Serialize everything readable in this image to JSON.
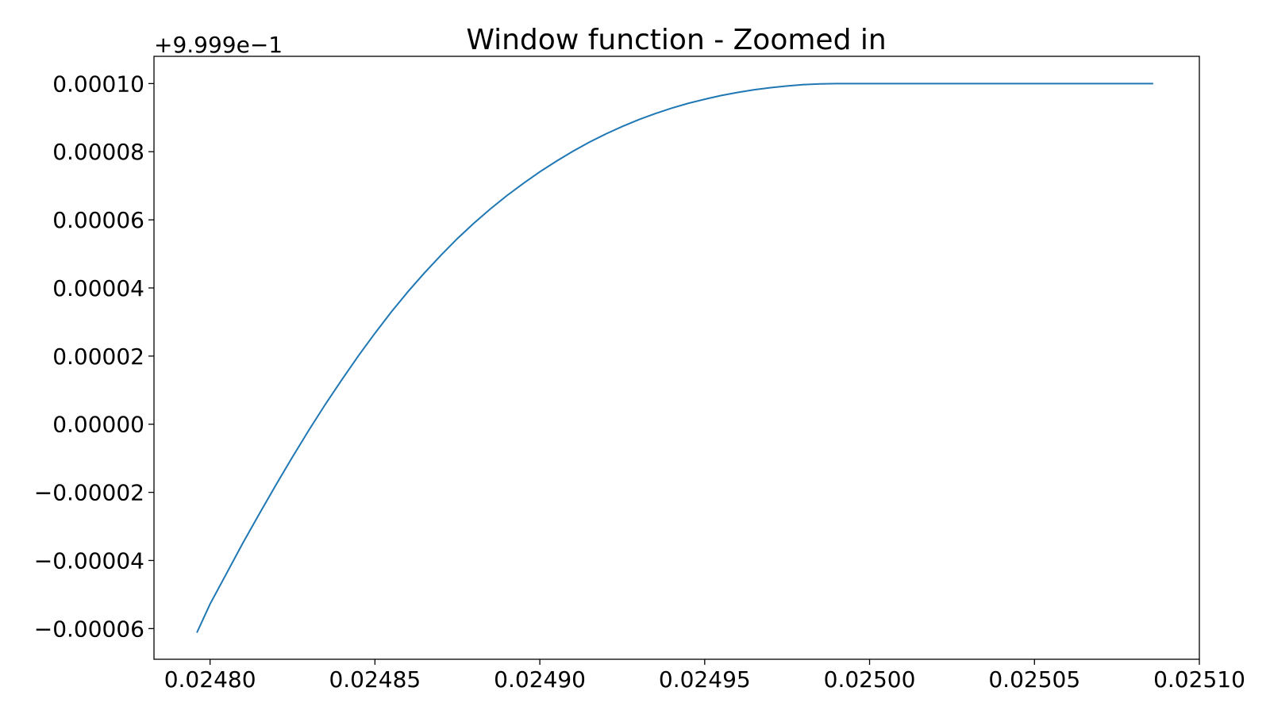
{
  "chart_data": {
    "type": "line",
    "title": "Window function - Zoomed in",
    "xlabel": "",
    "ylabel": "",
    "y_offset_label": "+9.999e−1",
    "xlim": [
      0.024783,
      0.0251
    ],
    "ylim": [
      -6.9e-05,
      0.000108
    ],
    "x_ticks": [
      {
        "value": 0.0248,
        "label": "0.02480"
      },
      {
        "value": 0.02485,
        "label": "0.02485"
      },
      {
        "value": 0.0249,
        "label": "0.02490"
      },
      {
        "value": 0.02495,
        "label": "0.02495"
      },
      {
        "value": 0.025,
        "label": "0.02500"
      },
      {
        "value": 0.02505,
        "label": "0.02505"
      },
      {
        "value": 0.0251,
        "label": "0.02510"
      }
    ],
    "y_ticks": [
      {
        "value": 0.0001,
        "label": "0.00010"
      },
      {
        "value": 8e-05,
        "label": "0.00008"
      },
      {
        "value": 6e-05,
        "label": "0.00006"
      },
      {
        "value": 4e-05,
        "label": "0.00004"
      },
      {
        "value": 2e-05,
        "label": "0.00002"
      },
      {
        "value": 0.0,
        "label": "0.00000"
      },
      {
        "value": -2e-05,
        "label": "−0.00002"
      },
      {
        "value": -4e-05,
        "label": "−0.00004"
      },
      {
        "value": -6e-05,
        "label": "−0.00006"
      }
    ],
    "grid": false,
    "series": [
      {
        "color": "#1f77b4",
        "x": [
          0.024796,
          0.0248,
          0.024805,
          0.02481,
          0.024815,
          0.02482,
          0.024825,
          0.02483,
          0.024835,
          0.02484,
          0.024845,
          0.02485,
          0.024855,
          0.02486,
          0.024865,
          0.02487,
          0.024875,
          0.02488,
          0.024885,
          0.02489,
          0.024895,
          0.0249,
          0.024905,
          0.02491,
          0.024915,
          0.02492,
          0.024925,
          0.02493,
          0.024935,
          0.02494,
          0.024945,
          0.02495,
          0.024955,
          0.02496,
          0.024965,
          0.02497,
          0.024975,
          0.02498,
          0.024985,
          0.02499,
          0.024995,
          0.025,
          0.02501,
          0.02502,
          0.02503,
          0.02504,
          0.02505,
          0.02506,
          0.02507,
          0.02508,
          0.025086
        ],
        "y": [
          -6.12e-05,
          -5.28e-05,
          -4.38e-05,
          -3.48e-05,
          -2.62e-05,
          -1.78e-05,
          -9.6e-06,
          -1.7e-06,
          5.9e-06,
          1.31e-05,
          2.01e-05,
          2.67e-05,
          3.3e-05,
          3.89e-05,
          4.44e-05,
          4.96e-05,
          5.45e-05,
          5.9e-05,
          6.32e-05,
          6.71e-05,
          7.07e-05,
          7.41e-05,
          7.72e-05,
          8.01e-05,
          8.28e-05,
          8.52e-05,
          8.74e-05,
          8.94e-05,
          9.12e-05,
          9.28e-05,
          9.42e-05,
          9.54e-05,
          9.65e-05,
          9.74e-05,
          9.82e-05,
          9.88e-05,
          9.93e-05,
          9.97e-05,
          9.99e-05,
          0.0001,
          0.0001,
          0.0001,
          0.0001,
          0.0001,
          0.0001,
          0.0001,
          0.0001,
          0.0001,
          0.0001,
          0.0001,
          0.0001
        ]
      }
    ]
  }
}
